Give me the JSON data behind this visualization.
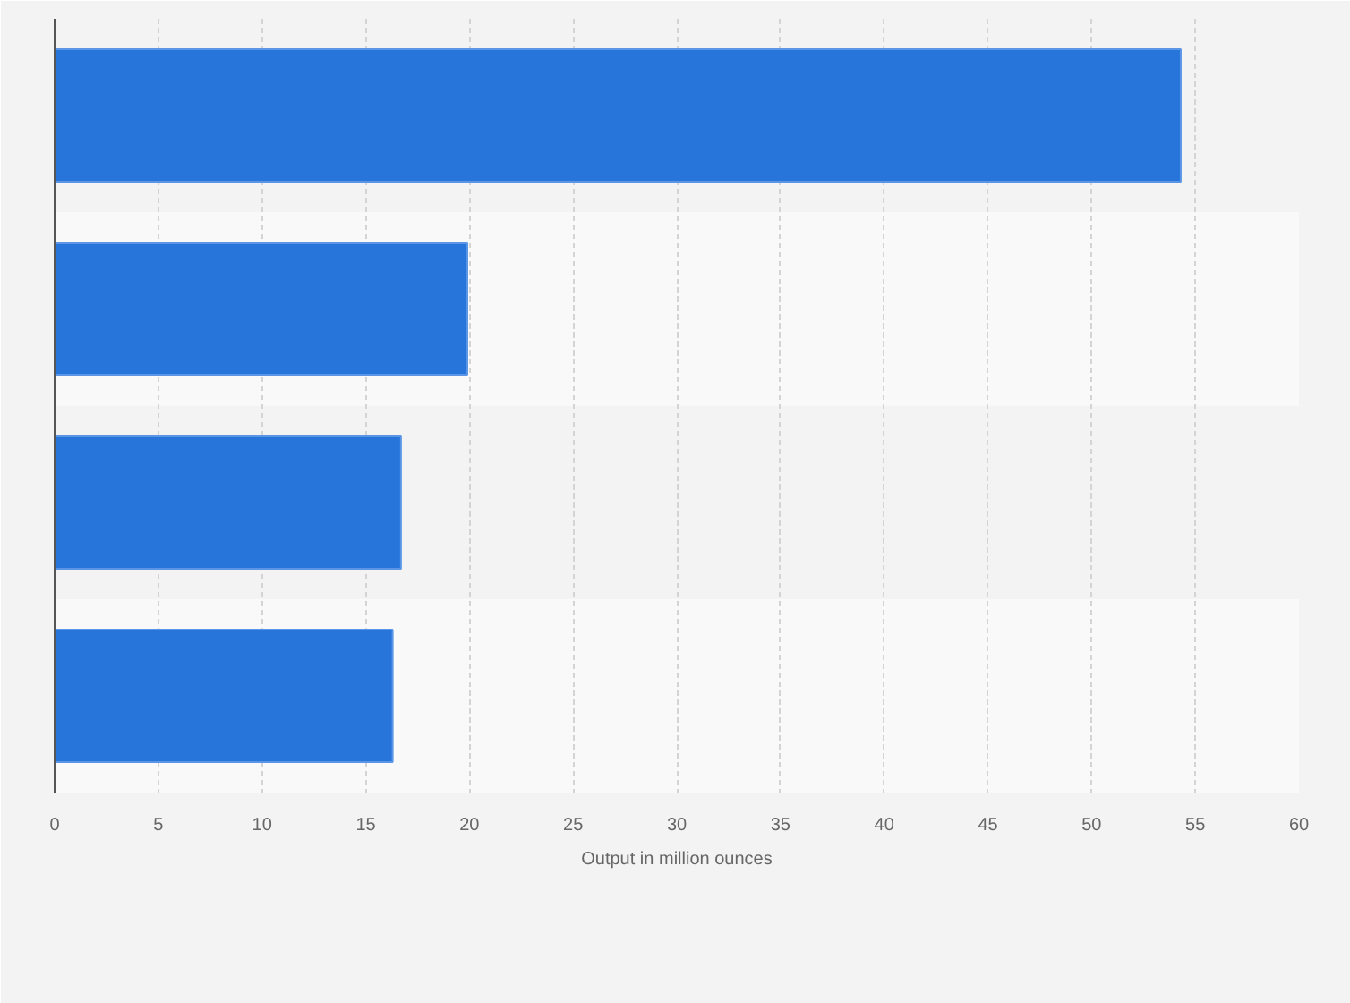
{
  "chart_data": {
    "type": "bar",
    "orientation": "horizontal",
    "xlabel": "Output in million ounces",
    "categories": [
      null,
      null,
      null,
      null
    ],
    "values": [
      54.3,
      19.9,
      16.7,
      16.3
    ],
    "color": "#2775db",
    "xlim": [
      0,
      60
    ],
    "xticks": [
      0,
      5,
      10,
      15,
      20,
      25,
      30,
      35,
      40,
      45,
      50,
      55,
      60
    ],
    "grid": "x"
  }
}
